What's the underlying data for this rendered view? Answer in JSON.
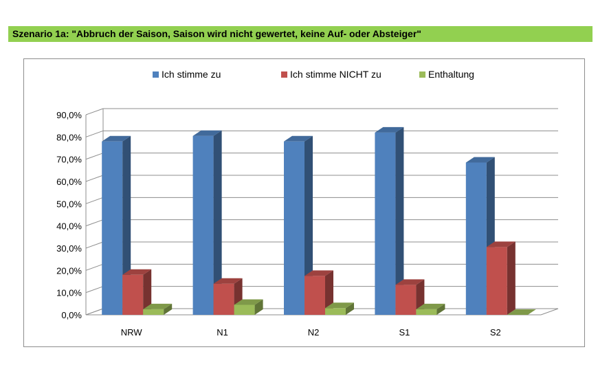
{
  "header": {
    "title": "Szenario 1a: \"Abbruch der Saison, Saison wird nicht gewertet, keine Auf- oder Absteiger\""
  },
  "colors": {
    "header_bg": "#92d050",
    "series_1": "#4f81bd",
    "series_2": "#c0504d",
    "series_3": "#9bbb59"
  },
  "chart_data": {
    "type": "bar",
    "title": "",
    "xlabel": "",
    "ylabel": "",
    "categories": [
      "NRW",
      "N1",
      "N2",
      "S1",
      "S2"
    ],
    "series": [
      {
        "name": "Ich stimme zu",
        "values": [
          78.0,
          80.5,
          78.0,
          82.0,
          68.5
        ]
      },
      {
        "name": "Ich stimme NICHT zu",
        "values": [
          18.0,
          14.0,
          17.5,
          13.5,
          30.5
        ]
      },
      {
        "name": "Enthaltung",
        "values": [
          2.5,
          4.5,
          3.0,
          2.5,
          0.0
        ]
      }
    ],
    "ylim": [
      0,
      90
    ],
    "y_ticks": [
      "0,0%",
      "10,0%",
      "20,0%",
      "30,0%",
      "40,0%",
      "50,0%",
      "60,0%",
      "70,0%",
      "80,0%",
      "90,0%"
    ],
    "grid": true,
    "legend_position": "top",
    "style": "3d-clustered-column"
  }
}
